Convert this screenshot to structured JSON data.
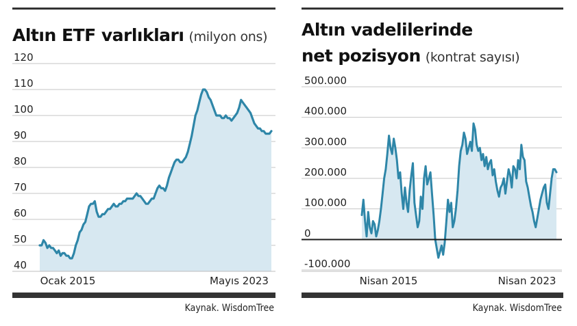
{
  "charts": [
    {
      "title": "Altın ETF varlıkları",
      "unit": "(milyon ons)",
      "y_ticks": [
        "120",
        "110",
        "100",
        "90",
        "80",
        "70",
        "60",
        "50",
        "40"
      ],
      "x_ticks": [
        "Ocak 2015",
        "Mayıs 2023"
      ],
      "source": "Kaynak. WisdomTree"
    },
    {
      "title_line1": "Altın vadelilerinde",
      "title_line2": "net pozisyon",
      "unit": "(kontrat sayısı)",
      "y_ticks": [
        "500.000",
        "400.000",
        "300.000",
        "200.000",
        "100.000",
        "0",
        "-100.000"
      ],
      "x_ticks": [
        "Nisan 2015",
        "Nisan 2023"
      ],
      "source": "Kaynak. WisdomTree"
    }
  ],
  "colors": {
    "line": "#2e86a8",
    "fill": "#d7e8f1",
    "grid": "#c4c4c4",
    "rule": "#333333"
  },
  "chart_data": [
    {
      "type": "area",
      "title": "Altın ETF varlıkları (milyon ons)",
      "xlabel": "",
      "ylabel": "",
      "ylim": [
        40,
        120
      ],
      "x_start": "Ocak 2015",
      "x_end": "Mayıs 2023",
      "grid": true,
      "values": [
        50,
        50,
        52,
        51,
        49,
        50,
        49,
        49,
        48,
        47,
        48,
        46,
        47,
        47,
        46,
        46,
        45,
        45,
        47,
        50,
        52,
        55,
        56,
        58,
        59,
        62,
        65,
        66,
        66,
        67,
        63,
        61,
        61,
        62,
        62,
        63,
        64,
        64,
        65,
        66,
        65,
        65,
        66,
        66,
        67,
        67,
        68,
        68,
        68,
        68,
        69,
        70,
        69,
        69,
        68,
        67,
        66,
        66,
        67,
        68,
        68,
        70,
        72,
        73,
        72,
        72,
        71,
        73,
        76,
        78,
        80,
        82,
        83,
        83,
        82,
        82,
        83,
        84,
        86,
        89,
        92,
        96,
        100,
        102,
        105,
        108,
        110,
        110,
        109,
        107,
        106,
        104,
        102,
        100,
        100,
        100,
        99,
        99,
        100,
        99,
        99,
        98,
        99,
        100,
        101,
        103,
        106,
        105,
        104,
        103,
        102,
        101,
        99,
        97,
        96,
        95,
        95,
        94,
        94,
        93,
        93,
        93,
        94
      ]
    },
    {
      "type": "area",
      "title": "Altın vadelilerinde net pozisyon (kontrat sayısı)",
      "xlabel": "",
      "ylabel": "",
      "ylim": [
        -100000,
        500000
      ],
      "x_start": "Nisan 2015",
      "x_end": "Nisan 2023",
      "grid": true,
      "values": [
        80000,
        130000,
        60000,
        10000,
        90000,
        40000,
        20000,
        60000,
        50000,
        10000,
        30000,
        60000,
        100000,
        150000,
        200000,
        230000,
        280000,
        340000,
        300000,
        280000,
        330000,
        300000,
        260000,
        200000,
        220000,
        150000,
        100000,
        170000,
        120000,
        90000,
        160000,
        210000,
        250000,
        120000,
        80000,
        40000,
        60000,
        140000,
        100000,
        200000,
        240000,
        180000,
        200000,
        220000,
        150000,
        80000,
        0,
        -30000,
        -60000,
        -40000,
        -20000,
        -50000,
        -10000,
        60000,
        130000,
        90000,
        120000,
        40000,
        60000,
        100000,
        160000,
        240000,
        290000,
        310000,
        350000,
        330000,
        280000,
        300000,
        320000,
        290000,
        380000,
        360000,
        310000,
        290000,
        300000,
        260000,
        280000,
        240000,
        270000,
        230000,
        250000,
        260000,
        210000,
        230000,
        190000,
        160000,
        140000,
        170000,
        180000,
        200000,
        150000,
        190000,
        230000,
        210000,
        170000,
        240000,
        230000,
        200000,
        260000,
        230000,
        310000,
        270000,
        260000,
        190000,
        170000,
        140000,
        110000,
        90000,
        60000,
        40000,
        70000,
        100000,
        130000,
        150000,
        170000,
        180000,
        120000,
        100000,
        150000,
        200000,
        230000,
        230000,
        220000
      ]
    }
  ]
}
